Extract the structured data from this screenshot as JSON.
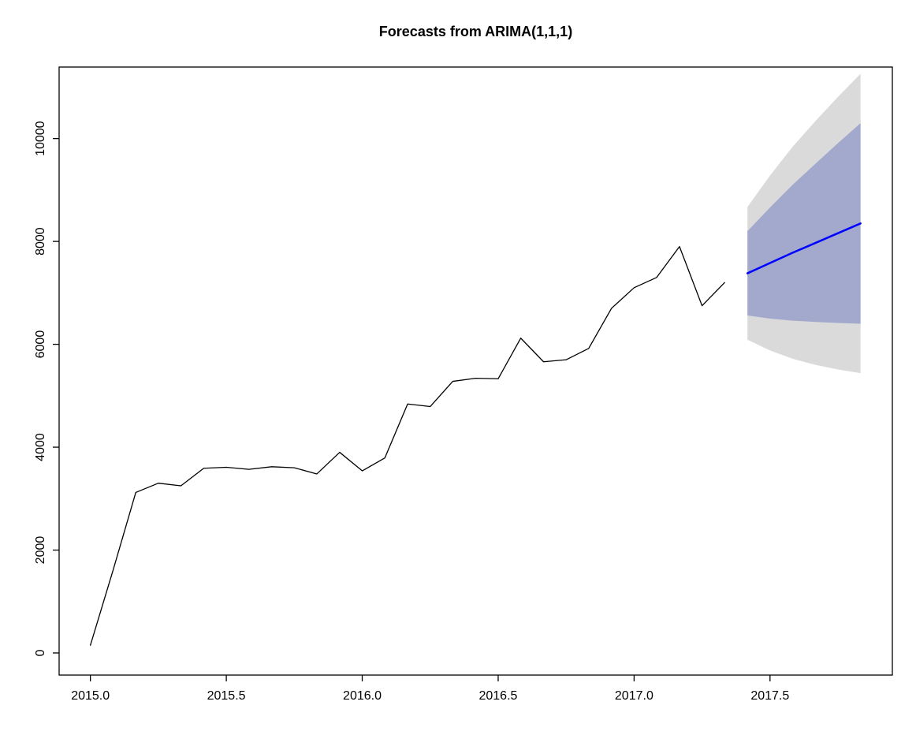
{
  "title": "Forecasts from ARIMA(1,1,1)",
  "colors": {
    "background": "#ffffff",
    "axis": "#000000",
    "observed_line": "#000000",
    "forecast_line": "#0000ff",
    "interval_80": "#a2a9cc",
    "interval_95": "#dadada"
  },
  "chart_data": {
    "type": "line",
    "title": "Forecasts from ARIMA(1,1,1)",
    "xlabel": "",
    "ylabel": "",
    "grid": false,
    "legend": "none",
    "xlim": [
      2014.885,
      2017.95
    ],
    "ylim": [
      -430,
      11390
    ],
    "x_ticks": [
      2015.0,
      2015.5,
      2016.0,
      2016.5,
      2017.0,
      2017.5
    ],
    "x_tick_labels": [
      "2015.0",
      "2015.5",
      "2016.0",
      "2016.5",
      "2017.0",
      "2017.5"
    ],
    "y_ticks": [
      0,
      2000,
      4000,
      6000,
      8000,
      10000
    ],
    "y_tick_labels": [
      "0",
      "2000",
      "4000",
      "6000",
      "8000",
      "10000"
    ],
    "series": [
      {
        "name": "observed",
        "color": "#000000",
        "width": 1.3,
        "x": [
          2015.0,
          2015.083,
          2015.167,
          2015.25,
          2015.333,
          2015.417,
          2015.5,
          2015.583,
          2015.667,
          2015.75,
          2015.833,
          2015.917,
          2016.0,
          2016.083,
          2016.167,
          2016.25,
          2016.333,
          2016.417,
          2016.5,
          2016.583,
          2016.667,
          2016.75,
          2016.833,
          2016.917,
          2017.0,
          2017.083,
          2017.167,
          2017.25,
          2017.333
        ],
        "y": [
          150,
          1600,
          3120,
          3300,
          3250,
          3590,
          3610,
          3570,
          3620,
          3600,
          3480,
          3900,
          3540,
          3790,
          4840,
          4790,
          5280,
          5340,
          5330,
          6120,
          5660,
          5700,
          5920,
          6700,
          7100,
          7300,
          7900,
          6750,
          7200
        ]
      },
      {
        "name": "forecast-mean",
        "color": "#0000ff",
        "width": 2.5,
        "x": [
          2017.417,
          2017.5,
          2017.583,
          2017.667,
          2017.75,
          2017.833
        ],
        "y": [
          7380,
          7580,
          7780,
          7970,
          8160,
          8350
        ]
      }
    ],
    "intervals": [
      {
        "level": 95,
        "color": "#dadada",
        "x": [
          2017.417,
          2017.5,
          2017.583,
          2017.667,
          2017.75,
          2017.833
        ],
        "lower": [
          6090,
          5880,
          5720,
          5600,
          5510,
          5440
        ],
        "upper": [
          8670,
          9280,
          9840,
          10340,
          10810,
          11260
        ]
      },
      {
        "level": 80,
        "color": "#a2a9cc",
        "x": [
          2017.417,
          2017.5,
          2017.583,
          2017.667,
          2017.75,
          2017.833
        ],
        "lower": [
          6560,
          6500,
          6460,
          6435,
          6415,
          6400
        ],
        "upper": [
          8200,
          8660,
          9100,
          9510,
          9910,
          10300
        ]
      }
    ]
  }
}
